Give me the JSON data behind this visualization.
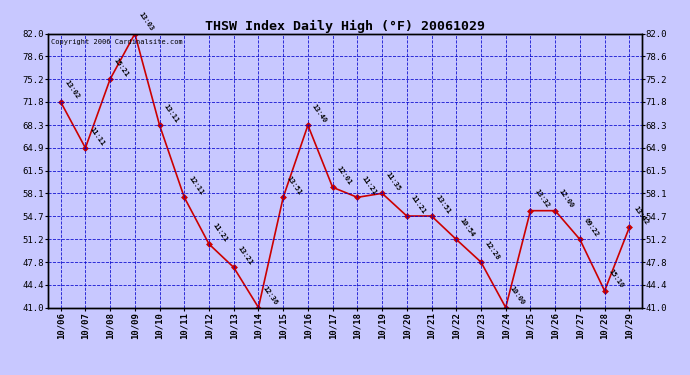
{
  "title": "THSW Index Daily High (°F) 20061029",
  "copyright": "Copyright 2006 Cardinalsite.com",
  "background_color": "#c8c8ff",
  "plot_bg_color": "#c8c8ff",
  "line_color": "#cc0000",
  "marker_color": "#cc0000",
  "grid_color": "#0000cc",
  "text_color": "#000000",
  "ylim": [
    41.0,
    82.0
  ],
  "yticks": [
    41.0,
    44.4,
    47.8,
    51.2,
    54.7,
    58.1,
    61.5,
    64.9,
    68.3,
    71.8,
    75.2,
    78.6,
    82.0
  ],
  "dates": [
    "10/06",
    "10/07",
    "10/08",
    "10/09",
    "10/10",
    "10/11",
    "10/12",
    "10/13",
    "10/14",
    "10/15",
    "10/16",
    "10/17",
    "10/18",
    "10/19",
    "10/20",
    "10/21",
    "10/22",
    "10/23",
    "10/24",
    "10/25",
    "10/26",
    "10/27",
    "10/28",
    "10/29"
  ],
  "values": [
    71.8,
    64.9,
    75.2,
    82.0,
    68.3,
    57.5,
    50.5,
    47.0,
    41.0,
    57.5,
    68.3,
    59.0,
    57.5,
    58.1,
    54.7,
    54.7,
    51.2,
    47.8,
    41.0,
    55.5,
    55.5,
    51.2,
    43.5,
    53.0
  ],
  "labels": [
    "13:02",
    "11:11",
    "15:21",
    "13:03",
    "13:11",
    "12:11",
    "11:21",
    "13:21",
    "12:36",
    "13:51",
    "13:40",
    "12:01",
    "11:21",
    "11:35",
    "11:21",
    "13:51",
    "10:54",
    "12:28",
    "10:00",
    "13:32",
    "12:00",
    "09:22",
    "15:10",
    "13:42"
  ]
}
